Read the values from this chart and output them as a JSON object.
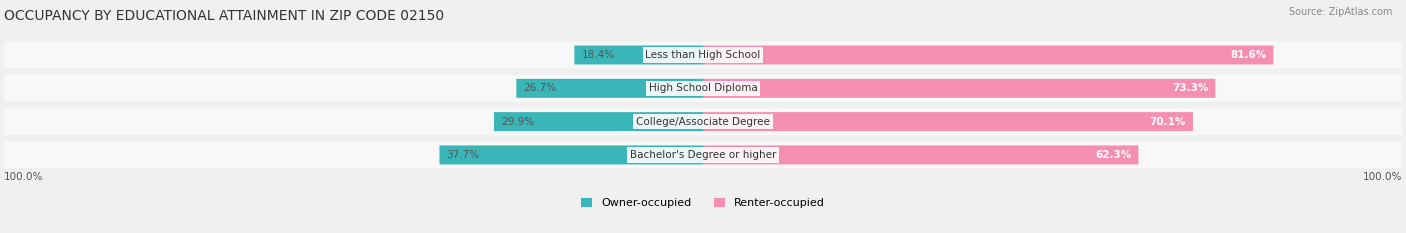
{
  "title": "OCCUPANCY BY EDUCATIONAL ATTAINMENT IN ZIP CODE 02150",
  "source": "Source: ZipAtlas.com",
  "categories": [
    "Less than High School",
    "High School Diploma",
    "College/Associate Degree",
    "Bachelor's Degree or higher"
  ],
  "owner_pct": [
    18.4,
    26.7,
    29.9,
    37.7
  ],
  "renter_pct": [
    81.6,
    73.3,
    70.1,
    62.3
  ],
  "owner_color": "#3ab5b8",
  "renter_color": "#f48fb1",
  "bg_color": "#f0f0f0",
  "bar_bg_color": "#e0e0e0",
  "title_fontsize": 10,
  "label_fontsize": 7.5,
  "pct_fontsize": 7.5,
  "legend_fontsize": 8,
  "source_fontsize": 7,
  "left_label": "100.0%",
  "right_label": "100.0%",
  "bar_height": 0.55,
  "bar_gap": 0.25
}
